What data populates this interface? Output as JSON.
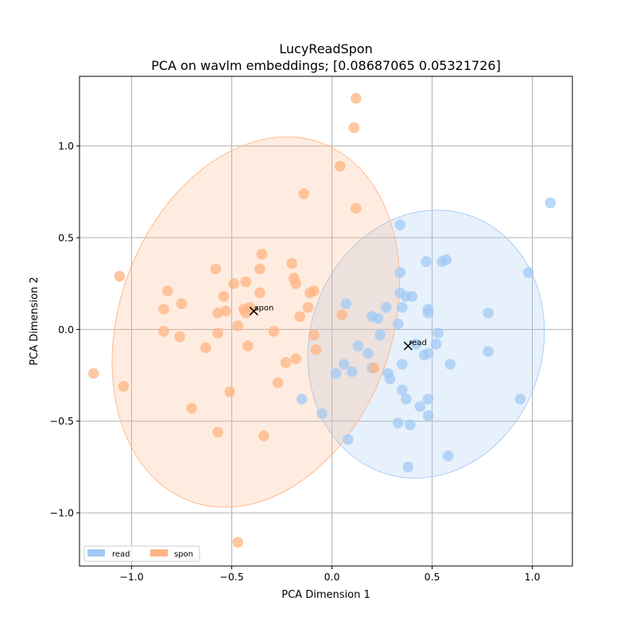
{
  "chart_data": {
    "type": "scatter",
    "title": "LucyReadSpon",
    "subtitle": "PCA on wavlm embeddings; [0.08687065 0.05321726]",
    "xlabel": "PCA Dimension 1",
    "ylabel": "PCA Dimension 2",
    "xlim": [
      -1.26,
      1.2
    ],
    "ylim": [
      -1.29,
      1.38
    ],
    "xticks": [
      -1.0,
      -0.5,
      0.0,
      0.5,
      1.0
    ],
    "xtick_labels": [
      "−1.0",
      "−0.5",
      "0.0",
      "0.5",
      "1.0"
    ],
    "yticks": [
      -1.0,
      -0.5,
      0.0,
      0.5,
      1.0
    ],
    "ytick_labels": [
      "−1.0",
      "−0.5",
      "0.0",
      "0.5",
      "1.0"
    ],
    "grid": true,
    "legend_position": "bottom-left",
    "series": [
      {
        "name": "read",
        "color": "#a1c9f4",
        "centroid": [
          0.38,
          -0.09
        ],
        "centroid_label": "read",
        "ellipse": {
          "center": [
            0.47,
            -0.08
          ],
          "rx": 0.58,
          "ry": 0.74,
          "angle_deg": 18
        },
        "points": [
          [
            1.09,
            0.69
          ],
          [
            0.98,
            0.31
          ],
          [
            0.94,
            -0.38
          ],
          [
            0.78,
            0.09
          ],
          [
            0.78,
            -0.12
          ],
          [
            0.34,
            0.57
          ],
          [
            0.47,
            0.37
          ],
          [
            0.55,
            0.37
          ],
          [
            0.57,
            0.38
          ],
          [
            0.34,
            0.31
          ],
          [
            0.34,
            0.2
          ],
          [
            0.37,
            0.18
          ],
          [
            0.4,
            0.18
          ],
          [
            0.48,
            0.11
          ],
          [
            0.48,
            0.09
          ],
          [
            0.35,
            0.12
          ],
          [
            0.27,
            0.12
          ],
          [
            0.2,
            0.07
          ],
          [
            0.23,
            0.06
          ],
          [
            0.33,
            0.03
          ],
          [
            0.53,
            -0.02
          ],
          [
            0.24,
            -0.03
          ],
          [
            0.07,
            0.14
          ],
          [
            0.13,
            -0.09
          ],
          [
            0.18,
            -0.13
          ],
          [
            0.42,
            -0.08
          ],
          [
            0.46,
            -0.14
          ],
          [
            0.48,
            -0.13
          ],
          [
            0.52,
            -0.08
          ],
          [
            0.59,
            -0.19
          ],
          [
            0.35,
            -0.19
          ],
          [
            0.06,
            -0.19
          ],
          [
            0.02,
            -0.24
          ],
          [
            0.1,
            -0.23
          ],
          [
            0.2,
            -0.21
          ],
          [
            0.28,
            -0.24
          ],
          [
            0.29,
            -0.27
          ],
          [
            0.35,
            -0.33
          ],
          [
            0.37,
            -0.38
          ],
          [
            0.48,
            -0.38
          ],
          [
            0.44,
            -0.42
          ],
          [
            0.48,
            -0.47
          ],
          [
            0.33,
            -0.51
          ],
          [
            0.39,
            -0.52
          ],
          [
            0.58,
            -0.69
          ],
          [
            0.38,
            -0.75
          ],
          [
            -0.15,
            -0.38
          ],
          [
            -0.05,
            -0.46
          ],
          [
            0.08,
            -0.6
          ]
        ]
      },
      {
        "name": "spon",
        "color": "#ffb482",
        "centroid": [
          -0.39,
          0.1
        ],
        "centroid_label": "spon",
        "ellipse": {
          "center": [
            -0.38,
            0.04
          ],
          "rx": 0.68,
          "ry": 1.04,
          "angle_deg": 20
        },
        "points": [
          [
            0.12,
            1.26
          ],
          [
            0.11,
            1.1
          ],
          [
            0.04,
            0.89
          ],
          [
            -0.14,
            0.74
          ],
          [
            0.12,
            0.66
          ],
          [
            -0.35,
            0.41
          ],
          [
            -0.58,
            0.33
          ],
          [
            -0.36,
            0.33
          ],
          [
            -0.2,
            0.36
          ],
          [
            -1.06,
            0.29
          ],
          [
            -0.19,
            0.28
          ],
          [
            -0.18,
            0.25
          ],
          [
            -0.49,
            0.25
          ],
          [
            -0.43,
            0.26
          ],
          [
            -0.82,
            0.21
          ],
          [
            -0.36,
            0.2
          ],
          [
            -0.09,
            0.21
          ],
          [
            -0.11,
            0.2
          ],
          [
            -0.54,
            0.18
          ],
          [
            -0.75,
            0.14
          ],
          [
            -0.41,
            0.12
          ],
          [
            -0.44,
            0.11
          ],
          [
            -0.84,
            0.11
          ],
          [
            -0.12,
            0.12
          ],
          [
            -0.53,
            0.1
          ],
          [
            -0.57,
            0.09
          ],
          [
            -0.43,
            0.09
          ],
          [
            -0.16,
            0.07
          ],
          [
            0.05,
            0.08
          ],
          [
            -0.47,
            0.02
          ],
          [
            -0.84,
            -0.01
          ],
          [
            -0.57,
            -0.02
          ],
          [
            -0.29,
            -0.01
          ],
          [
            -0.09,
            -0.03
          ],
          [
            -0.76,
            -0.04
          ],
          [
            -0.42,
            -0.09
          ],
          [
            -0.63,
            -0.1
          ],
          [
            -0.08,
            -0.11
          ],
          [
            -0.18,
            -0.16
          ],
          [
            -0.23,
            -0.18
          ],
          [
            0.21,
            -0.21
          ],
          [
            -1.19,
            -0.24
          ],
          [
            -1.04,
            -0.31
          ],
          [
            -0.27,
            -0.29
          ],
          [
            -0.51,
            -0.34
          ],
          [
            -0.7,
            -0.43
          ],
          [
            -0.57,
            -0.56
          ],
          [
            -0.34,
            -0.58
          ],
          [
            -0.47,
            -1.16
          ]
        ]
      }
    ]
  }
}
